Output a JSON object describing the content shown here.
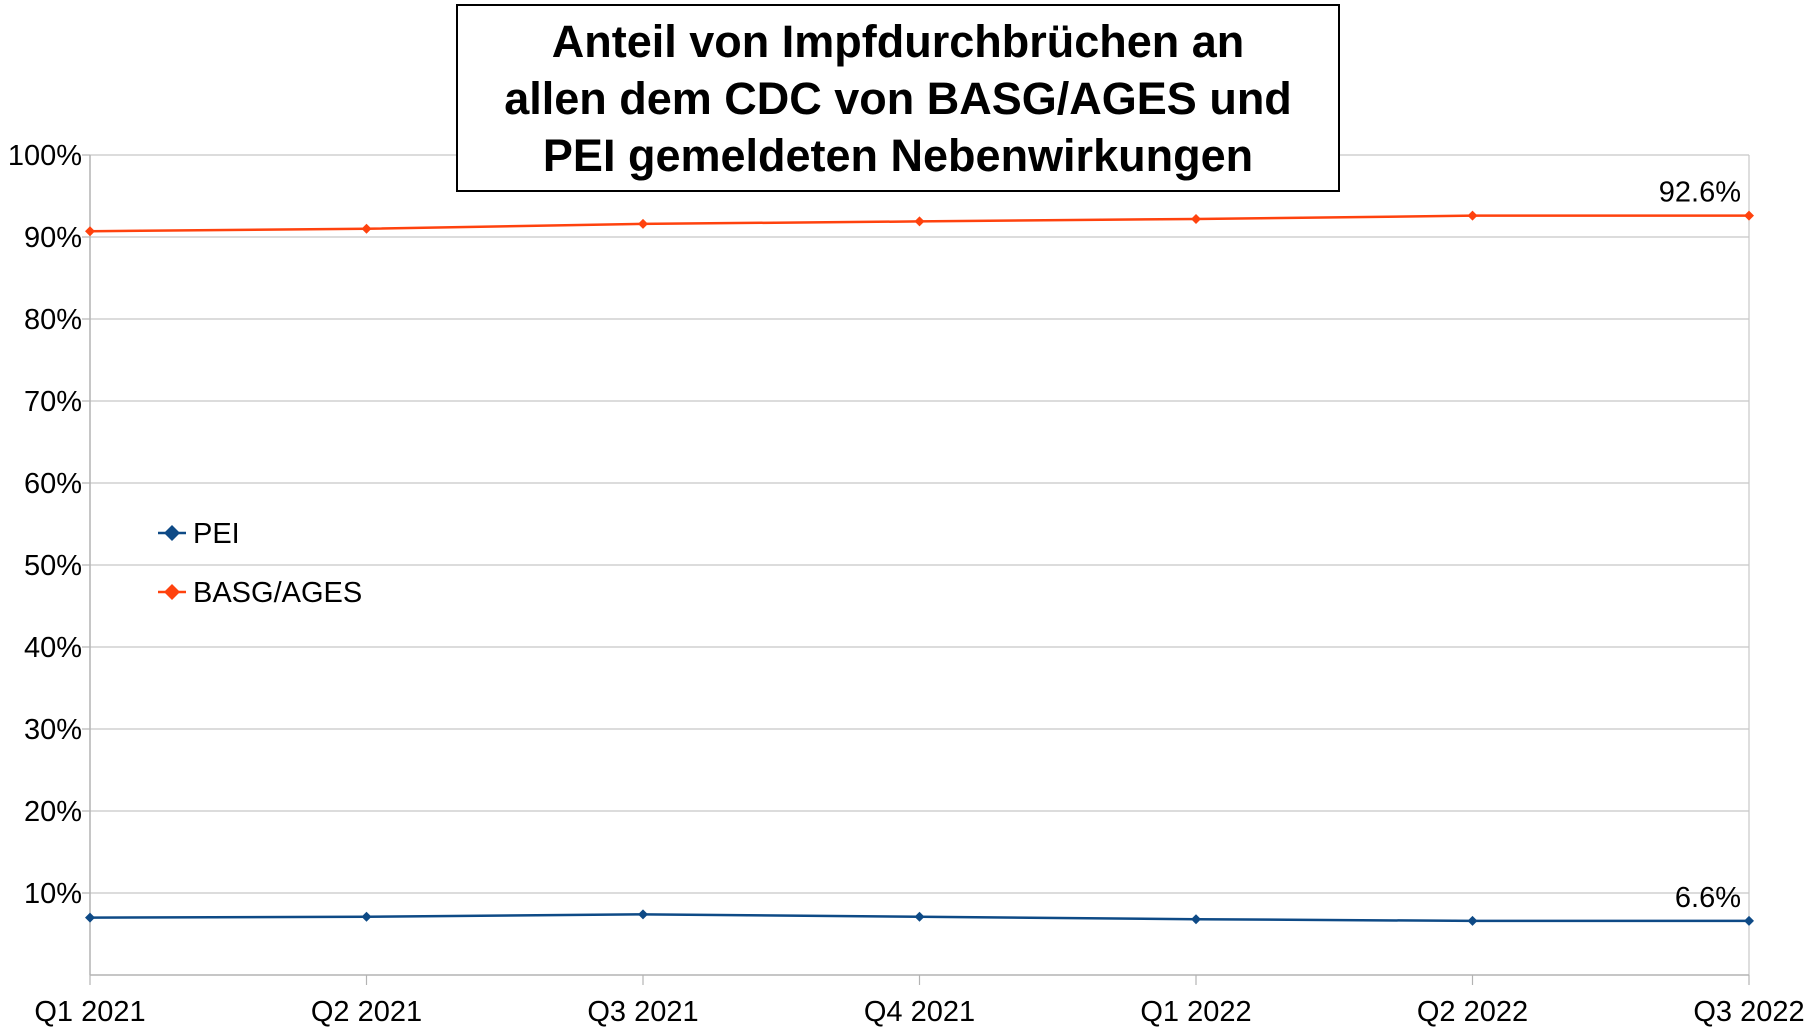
{
  "chart_data": {
    "type": "line",
    "title_lines": [
      "Anteil von Impfdurchbrüchen an",
      "allen dem CDC von BASG/AGES und",
      "PEI gemeldeten Nebenwirkungen"
    ],
    "xlabel": "",
    "ylabel": "",
    "categories": [
      "Q1 2021",
      "Q2 2021",
      "Q3 2021",
      "Q4 2021",
      "Q1 2022",
      "Q2 2022",
      "Q3 2022"
    ],
    "ylim": [
      0,
      100
    ],
    "yticks": [
      {
        "value": 10,
        "label": "10%"
      },
      {
        "value": 20,
        "label": "20%"
      },
      {
        "value": 30,
        "label": "30%"
      },
      {
        "value": 40,
        "label": "40%"
      },
      {
        "value": 50,
        "label": "50%"
      },
      {
        "value": 60,
        "label": "60%"
      },
      {
        "value": 70,
        "label": "70%"
      },
      {
        "value": 80,
        "label": "80%"
      },
      {
        "value": 90,
        "label": "90%"
      },
      {
        "value": 100,
        "label": "100%"
      }
    ],
    "grid": true,
    "legend_position": "left-middle",
    "series": [
      {
        "name": "PEI",
        "color": "#0e4a86",
        "values": [
          7.0,
          7.1,
          7.4,
          7.1,
          6.8,
          6.6,
          6.6
        ],
        "last_label": "6.6%"
      },
      {
        "name": "BASG/AGES",
        "color": "#ff420e",
        "values": [
          90.7,
          91.0,
          91.6,
          91.9,
          92.2,
          92.6,
          92.6
        ],
        "last_label": "92.6%"
      }
    ]
  }
}
